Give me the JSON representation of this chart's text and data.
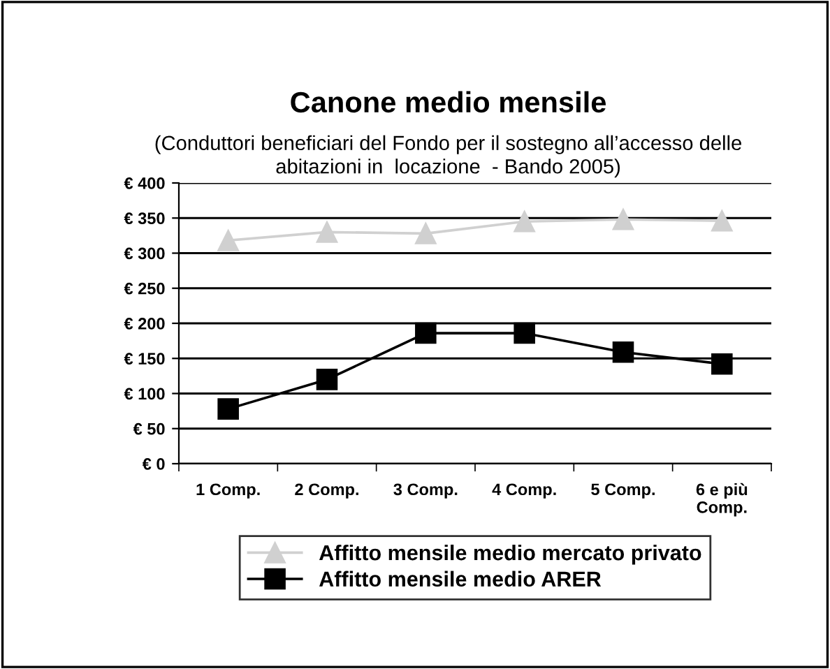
{
  "chart_data": {
    "type": "line",
    "title": "Canone medio mensile",
    "subtitle": "(Conduttori beneficiari del Fondo per il sostegno all’accesso delle\nabitazioni in  locazione  - Bando 2005)",
    "categories": [
      "1 Comp.",
      "2 Comp.",
      "3 Comp.",
      "4 Comp.",
      "5 Comp.",
      "6 e più\nComp."
    ],
    "series": [
      {
        "name": "Affitto mensile medio mercato privato",
        "color": "#d0d0d0",
        "marker": "triangle",
        "values": [
          318,
          330,
          328,
          345,
          348,
          346
        ]
      },
      {
        "name": "Affitto mensile medio ARER",
        "color": "#000000",
        "marker": "square",
        "values": [
          78,
          120,
          186,
          186,
          159,
          142
        ]
      }
    ],
    "ylim": [
      0,
      400
    ],
    "yticks": [
      {
        "value": 0,
        "label": "€ 0"
      },
      {
        "value": 50,
        "label": "€ 50"
      },
      {
        "value": 100,
        "label": "€ 100"
      },
      {
        "value": 150,
        "label": "€ 150"
      },
      {
        "value": 200,
        "label": "€ 200"
      },
      {
        "value": 250,
        "label": "€ 250"
      },
      {
        "value": 300,
        "label": "€ 300"
      },
      {
        "value": 350,
        "label": "€ 350"
      },
      {
        "value": 400,
        "label": "€ 400"
      }
    ],
    "grid": "y",
    "legend": "bottom",
    "line_style": "solid"
  }
}
